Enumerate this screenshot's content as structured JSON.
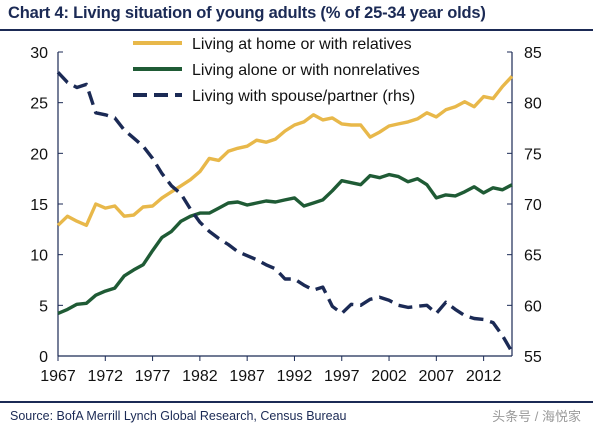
{
  "title": "Chart 4: Living situation of young adults (% of 25-34 year olds)",
  "source": "Source: BofA Merrill Lynch Global Research, Census Bureau",
  "watermark": "头条号 / 海悦家",
  "chart_data": {
    "type": "line",
    "title": "Chart 4: Living situation of young adults (% of 25-34 year olds)",
    "x_range": [
      1967,
      2015
    ],
    "x_ticks": [
      "1967",
      "1972",
      "1977",
      "1982",
      "1987",
      "1992",
      "1997",
      "2002",
      "2007",
      "2012"
    ],
    "y_left": {
      "range": [
        0,
        30
      ],
      "ticks": [
        "0",
        "5",
        "10",
        "15",
        "20",
        "25",
        "30"
      ]
    },
    "y_right": {
      "range": [
        55,
        85
      ],
      "ticks": [
        "55",
        "60",
        "65",
        "70",
        "75",
        "80",
        "85"
      ]
    },
    "grid": false,
    "legend_position": "top-center",
    "x": [
      1967,
      1968,
      1969,
      1970,
      1971,
      1972,
      1973,
      1974,
      1975,
      1976,
      1977,
      1978,
      1979,
      1980,
      1981,
      1982,
      1983,
      1984,
      1985,
      1986,
      1987,
      1988,
      1989,
      1990,
      1991,
      1992,
      1993,
      1994,
      1995,
      1996,
      1997,
      1998,
      1999,
      2000,
      2001,
      2002,
      2003,
      2004,
      2005,
      2006,
      2007,
      2008,
      2009,
      2010,
      2011,
      2012,
      2013,
      2014,
      2015
    ],
    "series": [
      {
        "name": "Living at home or with relatives",
        "axis": "left",
        "color": "#e8b84a",
        "values": [
          12.9,
          13.8,
          13.3,
          12.9,
          15.0,
          14.6,
          14.8,
          13.8,
          13.9,
          14.7,
          14.8,
          15.6,
          16.2,
          16.8,
          17.4,
          18.2,
          19.5,
          19.3,
          20.2,
          20.5,
          20.7,
          21.3,
          21.1,
          21.4,
          22.2,
          22.8,
          23.1,
          23.8,
          23.3,
          23.5,
          22.9,
          22.8,
          22.8,
          21.6,
          22.1,
          22.7,
          22.9,
          23.1,
          23.4,
          24.0,
          23.6,
          24.3,
          24.6,
          25.1,
          24.6,
          25.6,
          25.4,
          26.6,
          27.6
        ]
      },
      {
        "name": "Living alone or with nonrelatives",
        "axis": "left",
        "color": "#1f5b35",
        "values": [
          4.2,
          4.6,
          5.1,
          5.2,
          6.0,
          6.4,
          6.7,
          7.9,
          8.5,
          9.0,
          10.4,
          11.7,
          12.3,
          13.3,
          13.8,
          14.1,
          14.1,
          14.6,
          15.1,
          15.2,
          14.9,
          15.1,
          15.3,
          15.2,
          15.4,
          15.6,
          14.8,
          15.1,
          15.4,
          16.3,
          17.3,
          17.1,
          16.9,
          17.8,
          17.6,
          17.9,
          17.7,
          17.2,
          17.5,
          16.9,
          15.6,
          15.9,
          15.8,
          16.2,
          16.7,
          16.1,
          16.6,
          16.4,
          16.9
        ]
      },
      {
        "name": "Living with spouse/partner (rhs)",
        "axis": "right",
        "color": "#1b2a55",
        "values": [
          83.0,
          82.0,
          81.5,
          81.8,
          79.0,
          78.8,
          78.5,
          77.3,
          76.5,
          75.7,
          74.5,
          73.0,
          71.8,
          71.0,
          69.5,
          68.2,
          67.3,
          66.6,
          66.0,
          65.3,
          64.9,
          64.5,
          64.0,
          63.6,
          62.6,
          62.6,
          62.0,
          61.5,
          61.8,
          59.9,
          59.2,
          60.1,
          60.0,
          60.6,
          60.8,
          60.5,
          60.0,
          59.8,
          59.9,
          60.0,
          59.2,
          60.3,
          59.6,
          59.0,
          58.7,
          58.6,
          58.3,
          57.0,
          55.4
        ]
      }
    ]
  }
}
